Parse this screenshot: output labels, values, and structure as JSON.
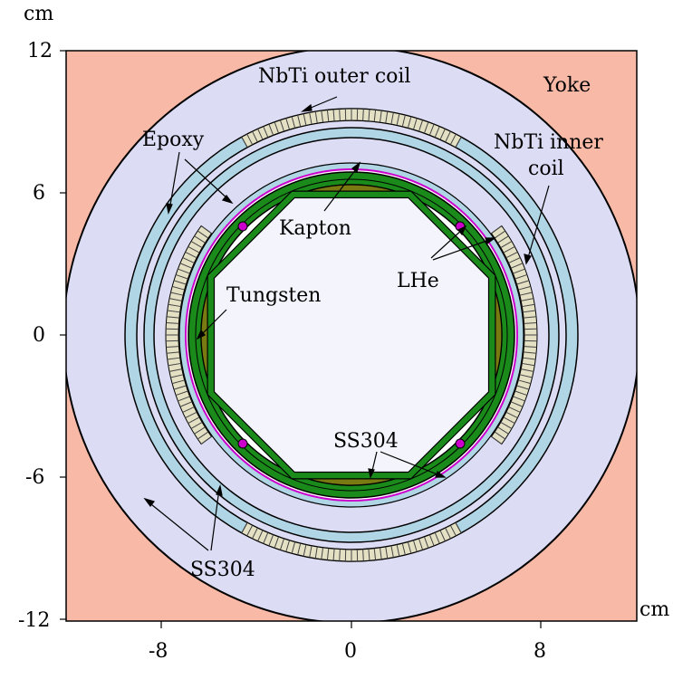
{
  "axes": {
    "unit_y": "cm",
    "unit_x": "cm",
    "x_ticks": [
      "-8",
      "0",
      "8"
    ],
    "y_ticks": [
      "12",
      "6",
      "0",
      "-6",
      "-12"
    ]
  },
  "labels": {
    "outer_coil": "NbTi outer coil",
    "yoke": "Yoke",
    "epoxy": "Epoxy",
    "inner_coil_line1": "NbTi inner",
    "inner_coil_line2": "coil",
    "kapton": "Kapton",
    "lhe": "LHe",
    "tungsten": "Tungsten",
    "ss304_inner": "SS304",
    "ss304_outer": "SS304"
  },
  "colors": {
    "yoke": "#f8b9a6",
    "iron_lavender": "#dcdcf5",
    "ss304_blue": "#b0d6e6",
    "coil": "#e4e0c4",
    "green": "#1a8a1a",
    "tungsten": "#7a7a12",
    "bore": "#f4f4fc",
    "lhe": "#cc00cc"
  }
}
